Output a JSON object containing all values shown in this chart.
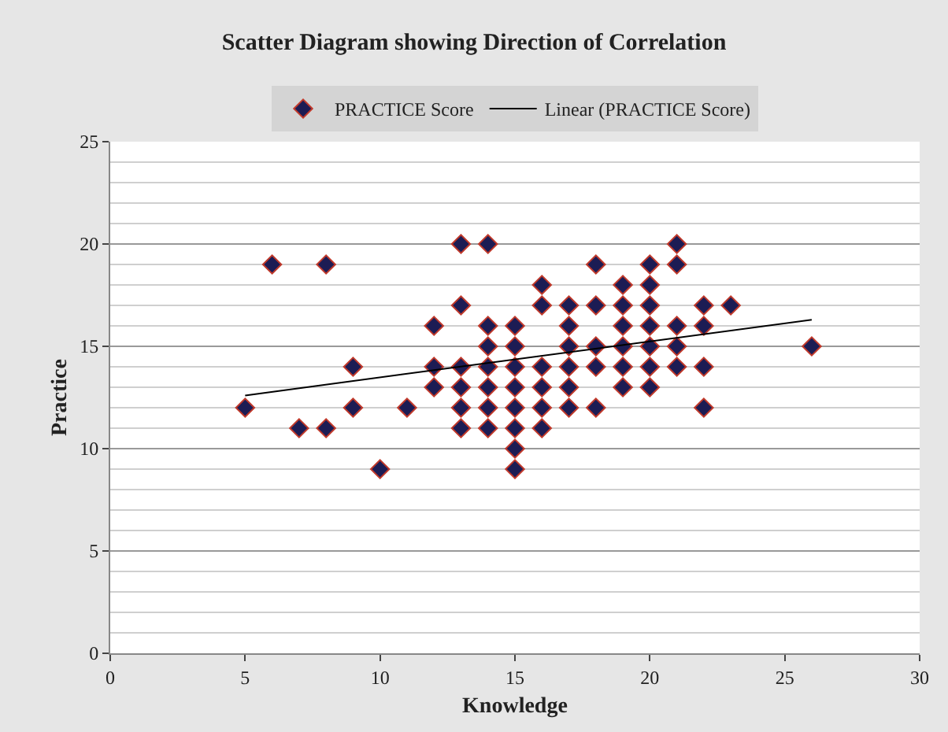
{
  "chart_data": {
    "type": "scatter",
    "title": "Scatter Diagram showing Direction of Correlation",
    "xlabel": "Knowledge",
    "ylabel": "Practice",
    "xlim": [
      0,
      30
    ],
    "xticks": [
      0,
      5,
      10,
      15,
      20,
      25,
      30
    ],
    "ylim": [
      0,
      25
    ],
    "yticks": [
      0,
      5,
      10,
      15,
      20,
      25
    ],
    "grid": "y",
    "legend": "top",
    "series": [
      {
        "name": "PRACTICE Score",
        "marker": "diamond",
        "color": "#1c1c54",
        "x": [
          5,
          6,
          7,
          8,
          8,
          9,
          9,
          10,
          11,
          12,
          12,
          12,
          13,
          13,
          13,
          13,
          13,
          13,
          14,
          14,
          14,
          14,
          14,
          14,
          14,
          15,
          15,
          15,
          15,
          15,
          15,
          15,
          15,
          16,
          16,
          16,
          16,
          16,
          16,
          17,
          17,
          17,
          17,
          17,
          17,
          18,
          18,
          18,
          18,
          18,
          19,
          19,
          19,
          19,
          19,
          19,
          20,
          20,
          20,
          20,
          20,
          20,
          20,
          21,
          21,
          21,
          21,
          21,
          22,
          22,
          22,
          22,
          23,
          26
        ],
        "values": [
          12,
          19,
          11,
          19,
          11,
          14,
          12,
          9,
          12,
          16,
          14,
          13,
          20,
          17,
          14,
          13,
          12,
          11,
          20,
          16,
          15,
          14,
          13,
          12,
          11,
          16,
          15,
          14,
          13,
          12,
          11,
          10,
          9,
          18,
          17,
          14,
          13,
          12,
          11,
          17,
          16,
          15,
          14,
          13,
          12,
          19,
          17,
          15,
          14,
          12,
          18,
          17,
          16,
          15,
          14,
          13,
          19,
          18,
          17,
          16,
          15,
          14,
          13,
          20,
          19,
          16,
          15,
          14,
          17,
          16,
          14,
          12,
          17,
          15
        ]
      },
      {
        "name": "Linear (PRACTICE Score)",
        "type": "line",
        "marker": "none",
        "color": "#000000",
        "x": [
          5,
          26
        ],
        "values": [
          12.6,
          16.3
        ]
      }
    ]
  }
}
